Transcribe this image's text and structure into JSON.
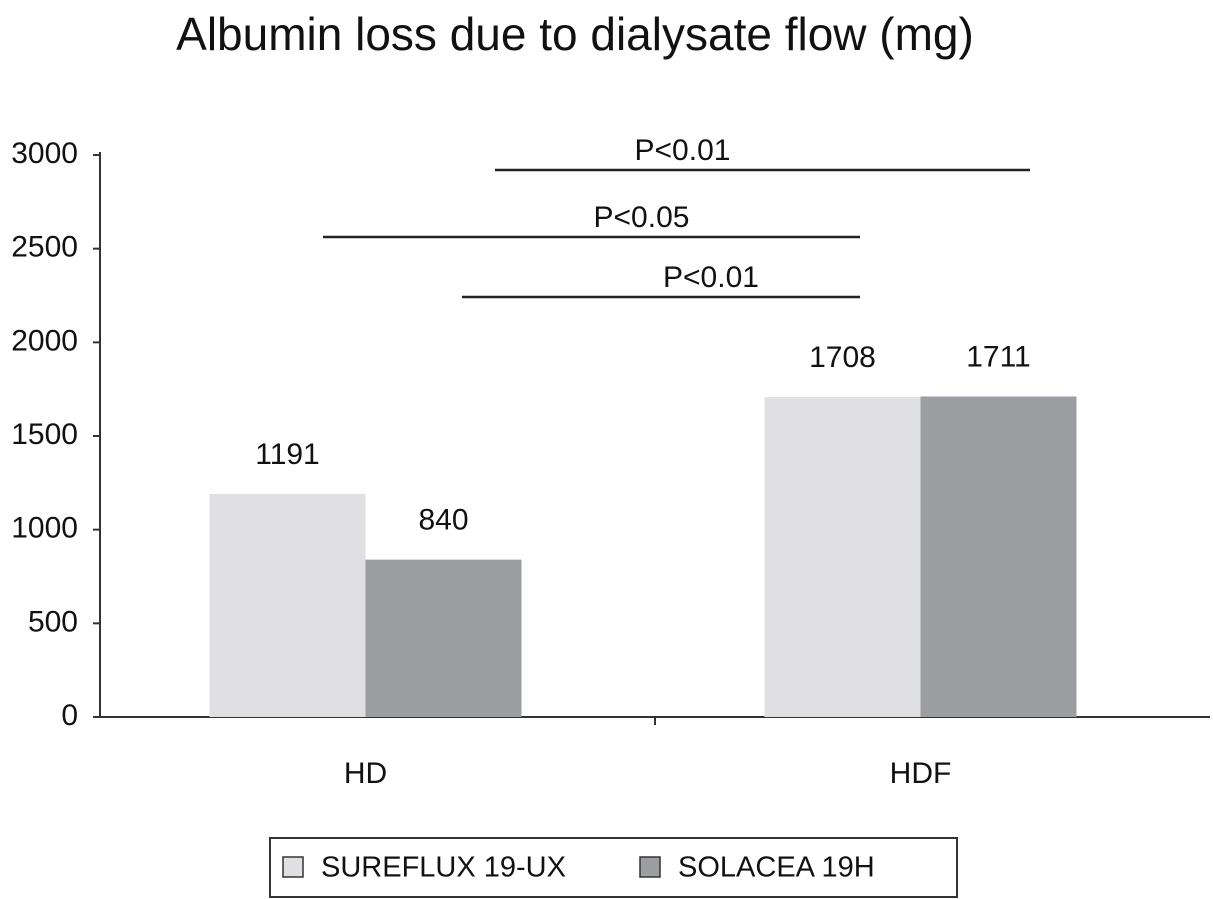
{
  "chart_data": {
    "type": "bar",
    "title": "Albumin loss due to dialysate flow (mg)",
    "categories": [
      "HD",
      "HDF"
    ],
    "series": [
      {
        "name": "SUREFLUX 19-UX",
        "color": "#e0e0e2",
        "values": [
          1191,
          1708
        ]
      },
      {
        "name": "SOLACEA 19H",
        "color": "#9d9ea2",
        "values": [
          840,
          1711
        ]
      }
    ],
    "ylim": [
      0,
      3000
    ],
    "yticks": [
      0,
      500,
      1000,
      1500,
      2000,
      2500,
      3000
    ],
    "annotations": [
      "P<0.01",
      "P<0.05",
      "P<0.01"
    ],
    "legend": "bottom"
  }
}
